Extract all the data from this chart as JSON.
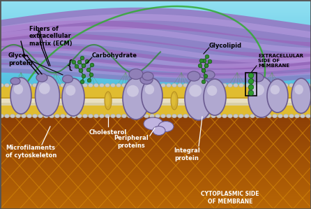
{
  "fig_width": 4.46,
  "fig_height": 2.99,
  "dpi": 100,
  "sky_colors": [
    "#3ab5d8",
    "#5ac8e0",
    "#7dd8e8",
    "#a8e0f0"
  ],
  "cyto_colors": [
    "#d4820a",
    "#c87010",
    "#b85e08",
    "#a04a00"
  ],
  "membrane_gold": "#c8a020",
  "membrane_gold2": "#e0b830",
  "bead_color": "#d0d0d0",
  "protein_fill": "#b0a8d0",
  "protein_fill2": "#9080b8",
  "protein_edge": "#6a5a90",
  "purple_fiber": "#9966bb",
  "green_carb": "#2d8a2d",
  "labels": {
    "ecm": "Fibers of\nextracellular\nmatrix (ECM)",
    "glycoprotein": "Glyco-\nprotein",
    "carbohydrate": "Carbohydrate",
    "glycolipid": "Glycolipid",
    "cholesterol": "Cholesterol",
    "microfilaments": "Microfilaments\nof cytoskeleton",
    "peripheral": "Peripheral\nproteins",
    "integral": "Integral\nprotein",
    "extracellular": "EXTRACELLULAR\nSIDE OF\nMEMBRANE",
    "cytoplasmic": "CYTOPLASMIC SIDE\nOF MEMBRANE"
  }
}
